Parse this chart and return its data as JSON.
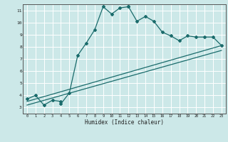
{
  "xlabel": "Humidex (Indice chaleur)",
  "bg_color": "#cce8e8",
  "grid_color": "#ffffff",
  "line_color": "#1a6b6b",
  "xlim": [
    -0.5,
    23.5
  ],
  "ylim": [
    2.5,
    11.5
  ],
  "xticks": [
    0,
    1,
    2,
    3,
    4,
    5,
    6,
    7,
    8,
    9,
    10,
    11,
    12,
    13,
    14,
    15,
    16,
    17,
    18,
    19,
    20,
    21,
    22,
    23
  ],
  "yticks": [
    3,
    4,
    5,
    6,
    7,
    8,
    9,
    10,
    11
  ],
  "curve1_x": [
    0,
    1,
    2,
    3,
    4,
    4,
    5,
    6,
    7,
    8,
    9,
    10,
    11,
    12,
    12,
    13,
    14,
    15,
    16,
    17,
    18,
    19,
    20,
    21,
    22,
    23
  ],
  "curve1_y": [
    3.7,
    4.0,
    3.2,
    3.6,
    3.5,
    3.3,
    4.2,
    7.3,
    8.3,
    9.4,
    11.3,
    10.7,
    11.2,
    11.3,
    11.3,
    10.1,
    10.5,
    10.1,
    9.2,
    8.9,
    8.5,
    8.9,
    8.8,
    8.8,
    8.8,
    8.1
  ],
  "curve2_x": [
    0,
    23
  ],
  "curve2_y": [
    3.5,
    8.1
  ],
  "curve3_x": [
    0,
    23
  ],
  "curve3_y": [
    3.2,
    7.7
  ]
}
